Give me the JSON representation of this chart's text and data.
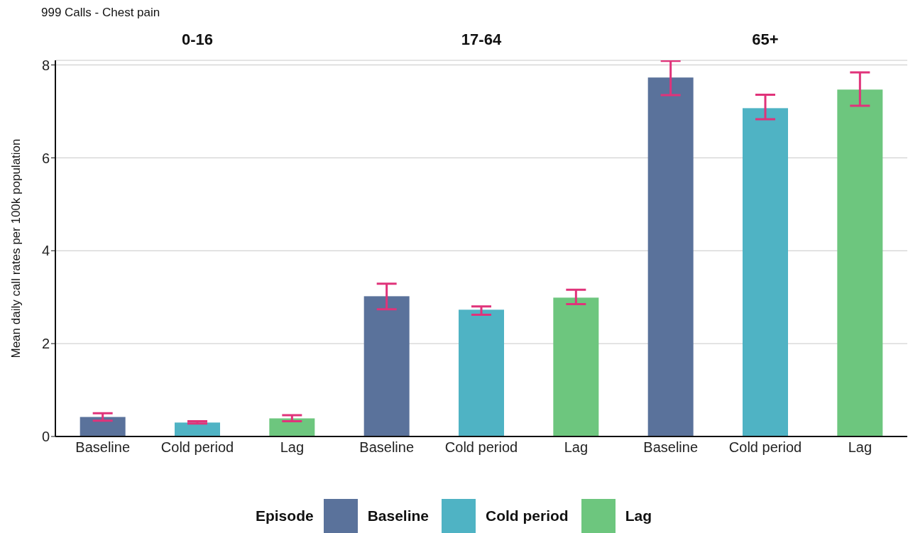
{
  "chart_data": [
    {
      "type": "bar",
      "title": "0-16",
      "annotations": [
        "999 Calls - Chest pain"
      ],
      "ylabel": "Mean daily call rates per 100k population",
      "categories": [
        "Baseline",
        "Cold period",
        "Lag"
      ],
      "stacked": true,
      "ylim": [
        0,
        8.1
      ],
      "yticks": [
        0,
        2,
        4,
        6,
        8
      ],
      "grid": "y",
      "legend": "bottom",
      "legend_title": "Episode",
      "series": [
        {
          "name": "Baseline",
          "color": "#5a729b",
          "values": [
            0.42,
            null,
            null
          ],
          "errors": [
            [
              0.34,
              0.5
            ],
            null,
            null
          ]
        },
        {
          "name": "Cold period",
          "color": "#4fb3c4",
          "values": [
            null,
            0.3,
            null
          ],
          "errors": [
            null,
            [
              0.28,
              0.33
            ],
            null
          ]
        },
        {
          "name": "Lag",
          "color": "#6dc67e",
          "values": [
            null,
            null,
            0.39
          ],
          "errors": [
            null,
            null,
            [
              0.33,
              0.46
            ]
          ]
        }
      ]
    },
    {
      "type": "bar",
      "title": "17-64",
      "categories": [
        "Baseline",
        "Cold period",
        "Lag"
      ],
      "stacked": true,
      "ylim": [
        0,
        8.1
      ],
      "yticks": [
        0,
        2,
        4,
        6,
        8
      ],
      "grid": "y",
      "tick_labels": "x",
      "series": [
        {
          "color": "#5a729b",
          "values": [
            3.02,
            null,
            null
          ],
          "errors": [
            [
              2.74,
              3.29
            ],
            null,
            null
          ]
        },
        {
          "color": "#4fb3c4",
          "values": [
            null,
            2.73,
            null
          ],
          "errors": [
            null,
            [
              2.62,
              2.8
            ],
            null
          ]
        },
        {
          "color": "#6dc67e",
          "values": [
            null,
            null,
            2.99
          ],
          "errors": [
            null,
            null,
            [
              2.85,
              3.16
            ]
          ]
        }
      ]
    },
    {
      "type": "bar",
      "title": "65+",
      "categories": [
        "Baseline",
        "Cold period",
        "Lag"
      ],
      "stacked": true,
      "ylim": [
        0,
        8.1
      ],
      "yticks": [
        0,
        2,
        4,
        6,
        8
      ],
      "grid": "y",
      "tick_labels": "x",
      "series": [
        {
          "color": "#5a729b",
          "values": [
            7.73,
            null,
            null
          ],
          "errors": [
            [
              7.35,
              8.09
            ],
            null,
            null
          ]
        },
        {
          "color": "#4fb3c4",
          "values": [
            null,
            7.07,
            null
          ],
          "errors": [
            null,
            [
              6.83,
              7.36
            ],
            null
          ]
        },
        {
          "color": "#6dc67e",
          "values": [
            null,
            null,
            7.47
          ],
          "errors": [
            null,
            null,
            [
              7.12,
              7.84
            ]
          ]
        }
      ]
    }
  ]
}
